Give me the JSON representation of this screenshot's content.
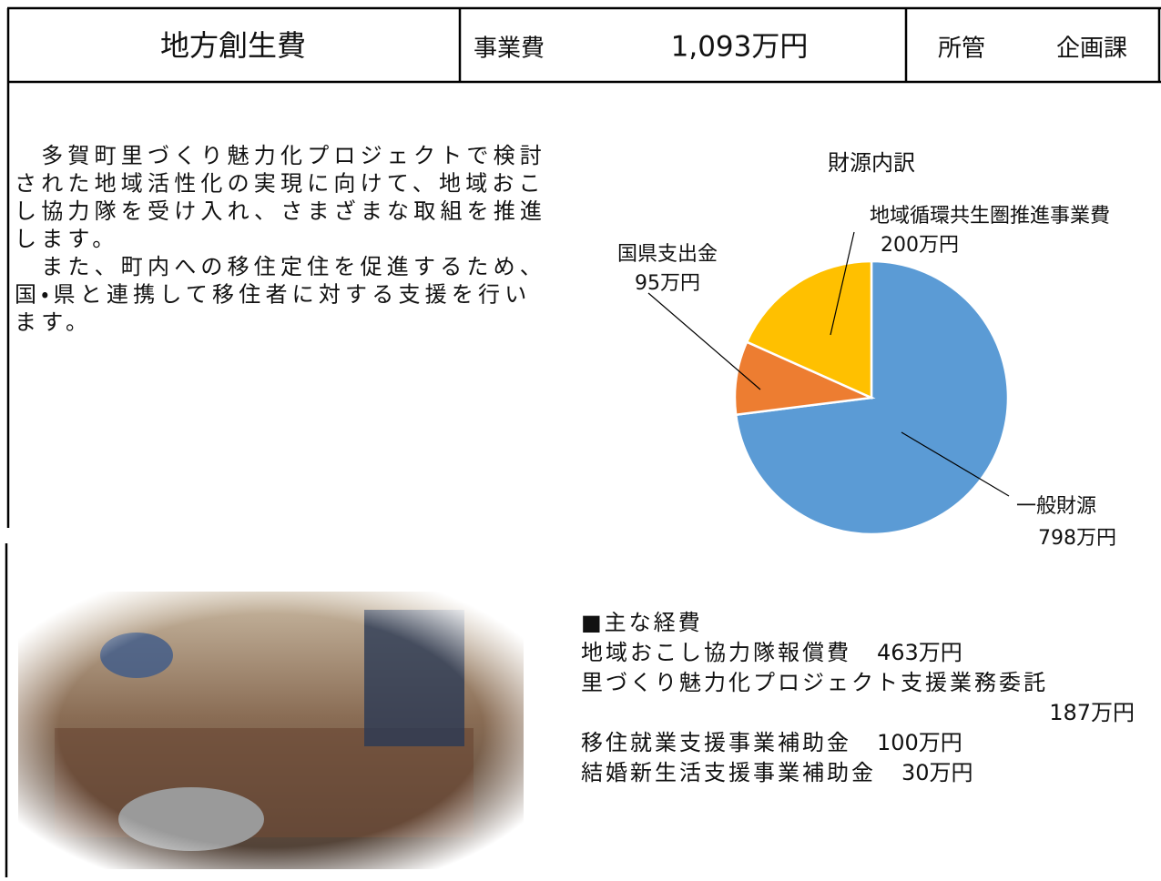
{
  "header": {
    "title": "地方創生費",
    "cost_label": "事業費",
    "cost": "1,093万円",
    "dept_label": "所管",
    "dept": "企画課"
  },
  "description": {
    "lines": [
      "　多賀町里づくり魅力化プロジェクトで検討",
      "された地域活性化の実現に向けて、地域おこ",
      "し協力隊を受け入れ、さまざまな取組を推進",
      "します。",
      "　また、町内への移住定住を促進するため、",
      "国・県と連携して移住者に対する支援を行い",
      "ます。"
    ]
  },
  "chart_data": {
    "type": "pie",
    "title": "財源内訳",
    "categories": [
      "一般財源",
      "国県支出金",
      "地域循環共生圏推進事業費"
    ],
    "values": [
      798,
      95,
      200
    ],
    "value_labels": [
      "798万円",
      "95万円",
      "200万円"
    ],
    "colors": [
      "#5b9bd5",
      "#ed7d31",
      "#ffc000"
    ]
  },
  "expenses": {
    "heading": "■主な経費",
    "items": [
      {
        "name": "地域おこし協力隊報償費",
        "amount": "463万円"
      },
      {
        "name": "里づくり魅力化プロジェクト支援業務委託",
        "amount": "187万円"
      },
      {
        "name": "移住就業支援事業補助金",
        "amount": "100万円"
      },
      {
        "name": "結婚新生活支援事業補助金",
        "amount": "30万円"
      }
    ]
  }
}
